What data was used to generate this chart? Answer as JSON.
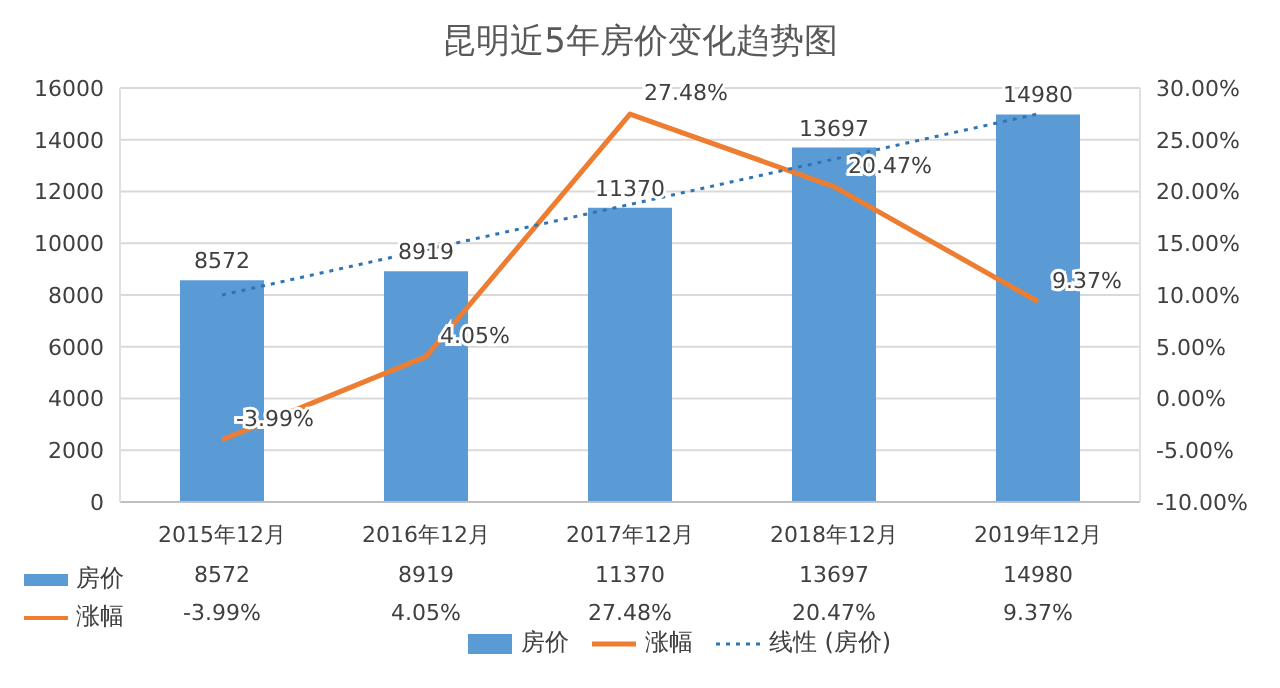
{
  "chart_data": {
    "type": "bar",
    "title": "昆明近5年房价变化趋势图",
    "categories": [
      "2015年12月",
      "2016年12月",
      "2017年12月",
      "2018年12月",
      "2019年12月"
    ],
    "series": [
      {
        "name": "房价",
        "color": "#5b9bd5",
        "values": [
          8572,
          8919,
          11370,
          13697,
          14980
        ],
        "value_labels": [
          "8572",
          "8919",
          "11370",
          "13697",
          "14980"
        ]
      },
      {
        "name": "涨幅",
        "type": "line",
        "axis": "y2",
        "color": "#ed7d31",
        "values": [
          -3.99,
          4.05,
          27.48,
          20.47,
          9.37
        ],
        "value_labels": [
          "-3.99%",
          "4.05%",
          "27.48%",
          "20.47%",
          "9.37%"
        ]
      },
      {
        "name": "线性 (房价)",
        "type": "line",
        "line_style": "dotted",
        "color": "#2f75b5",
        "values": [
          8000,
          9750,
          11500,
          13250,
          15000
        ]
      }
    ],
    "ylim": [
      0,
      16000
    ],
    "yticks": [
      0,
      2000,
      4000,
      6000,
      8000,
      10000,
      12000,
      14000,
      16000
    ],
    "y2lim": [
      -10,
      30
    ],
    "y2ticks": [
      {
        "value": -10,
        "label": "-10.00%"
      },
      {
        "value": -5,
        "label": "-5.00%"
      },
      {
        "value": 0,
        "label": "0.00%"
      },
      {
        "value": 5,
        "label": "5.00%"
      },
      {
        "value": 10,
        "label": "10.00%"
      },
      {
        "value": 15,
        "label": "15.00%"
      },
      {
        "value": 20,
        "label": "20.00%"
      },
      {
        "value": 25,
        "label": "25.00%"
      },
      {
        "value": 30,
        "label": "30.00%"
      }
    ],
    "grid": "y",
    "legend": "bottom",
    "marker": "none"
  }
}
